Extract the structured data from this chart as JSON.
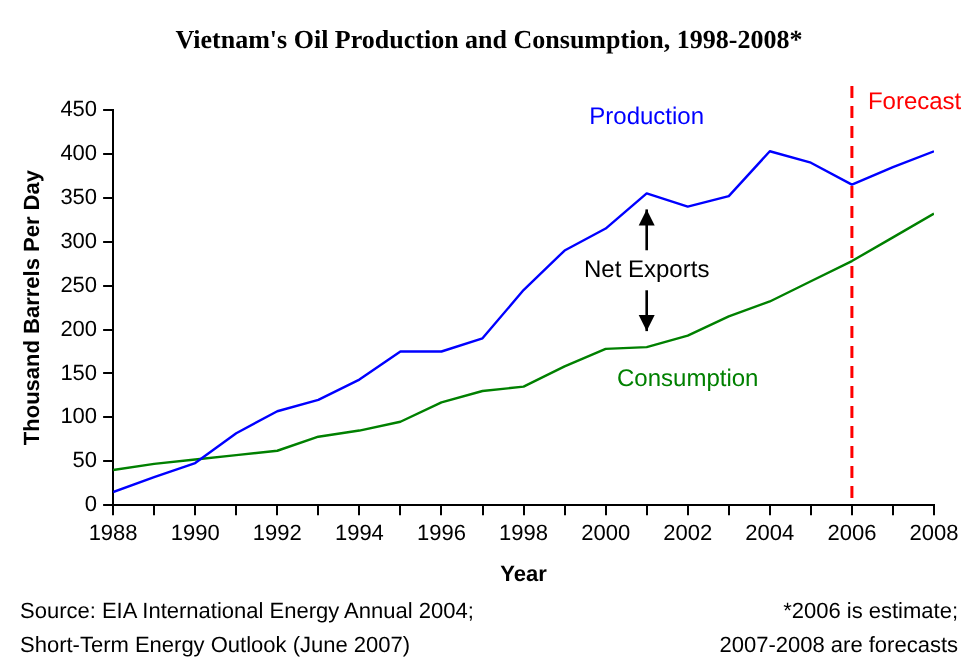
{
  "chart_data": {
    "type": "line",
    "title": "Vietnam's Oil Production and Consumption, 1998-2008*",
    "xlabel": "Year",
    "ylabel": "Thousand Barrels Per Day",
    "x": [
      1988,
      1989,
      1990,
      1991,
      1992,
      1993,
      1994,
      1995,
      1996,
      1997,
      1998,
      1999,
      2000,
      2001,
      2002,
      2003,
      2004,
      2005,
      2006,
      2007,
      2008
    ],
    "series": [
      {
        "name": "Production",
        "color": "#0000ff",
        "values": [
          15,
          32,
          48,
          82,
          107,
          120,
          143,
          175,
          175,
          190,
          245,
          290,
          315,
          355,
          340,
          352,
          403,
          390,
          365,
          385,
          403
        ]
      },
      {
        "name": "Consumption",
        "color": "#008000",
        "values": [
          40,
          47,
          52,
          57,
          62,
          78,
          85,
          95,
          117,
          130,
          135,
          158,
          178,
          180,
          193,
          215,
          232,
          255,
          278,
          305,
          332
        ]
      }
    ],
    "xlim": [
      1988,
      2008
    ],
    "xticks": [
      1988,
      {
        "value": 1989,
        "label": null
      },
      1990,
      {
        "value": 1991,
        "label": null
      },
      1992,
      {
        "value": 1993,
        "label": null
      },
      1994,
      {
        "value": 1995,
        "label": null
      },
      1996,
      {
        "value": 1997,
        "label": null
      },
      1998,
      {
        "value": 1999,
        "label": null
      },
      2000,
      {
        "value": 2001,
        "label": null
      },
      2002,
      {
        "value": 2003,
        "label": null
      },
      2004,
      {
        "value": 2005,
        "label": null
      },
      2006,
      {
        "value": 2007,
        "label": null
      },
      2008
    ],
    "ylim": [
      0,
      450
    ],
    "yticks": [
      0,
      50,
      100,
      150,
      200,
      250,
      300,
      350,
      400,
      450
    ],
    "grid": false,
    "legend": false,
    "marker": "none",
    "line_style": "solid",
    "ref_lines": [
      {
        "axis": "x",
        "value": 2006,
        "label": "Forecast",
        "color": "#ff0000",
        "line_style": "dashed"
      }
    ],
    "annotations": [
      "Net Exports",
      "Source: EIA International Energy Annual 2004;\nShort-Term Energy Outlook (June 2007)",
      "*2006 is estimate;\n2007-2008 are forecasts"
    ]
  }
}
